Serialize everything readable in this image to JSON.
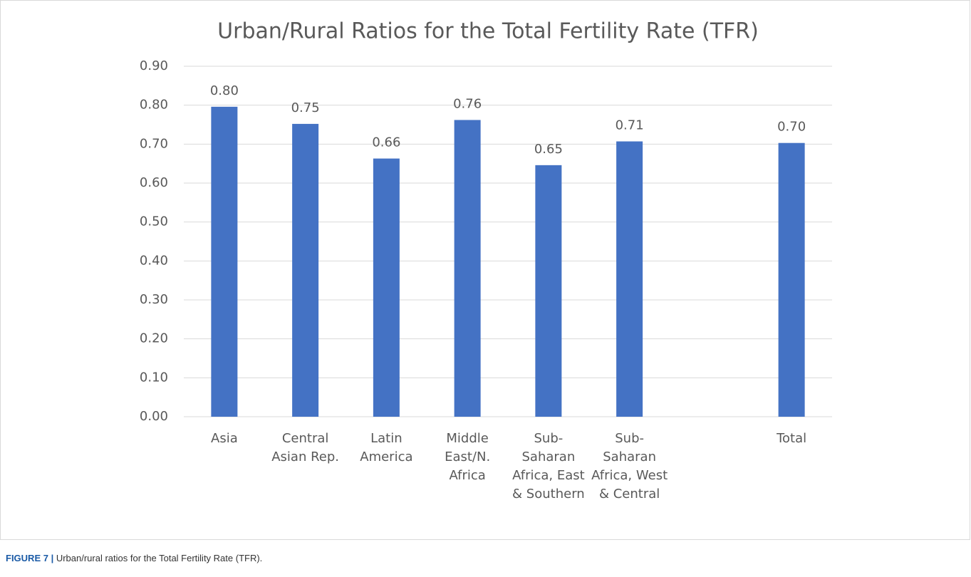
{
  "chart_data": {
    "type": "bar",
    "title": "Urban/Rural Ratios for the Total Fertility Rate (TFR)",
    "categories": [
      "Asia",
      "Central Asian Rep.",
      "Latin America",
      "Middle East/N. Africa",
      "Sub-Saharan Africa, East & Southern",
      "Sub-Saharan Africa, West & Central",
      null,
      "Total"
    ],
    "values": [
      0.796,
      0.752,
      0.663,
      0.762,
      0.646,
      0.707,
      null,
      0.703
    ],
    "value_labels": [
      "0.80",
      "0.75",
      "0.66",
      "0.76",
      "0.65",
      "0.71",
      null,
      "0.70"
    ],
    "color": "#4472c4",
    "ylim": [
      0,
      0.9
    ],
    "yticks": [
      {
        "value": 0,
        "label": "0.00"
      },
      {
        "value": 0.1,
        "label": "0.10"
      },
      {
        "value": 0.2,
        "label": "0.20"
      },
      {
        "value": 0.3,
        "label": "0.30"
      },
      {
        "value": 0.4,
        "label": "0.40"
      },
      {
        "value": 0.5,
        "label": "0.50"
      },
      {
        "value": 0.6,
        "label": "0.60"
      },
      {
        "value": 0.7,
        "label": "0.70"
      },
      {
        "value": 0.8,
        "label": "0.80"
      },
      {
        "value": 0.9,
        "label": "0.90"
      }
    ],
    "grid": true
  },
  "caption": {
    "label": "FIGURE 7 |",
    "text": "Urban/rural ratios for the Total Fertility Rate (TFR)."
  }
}
